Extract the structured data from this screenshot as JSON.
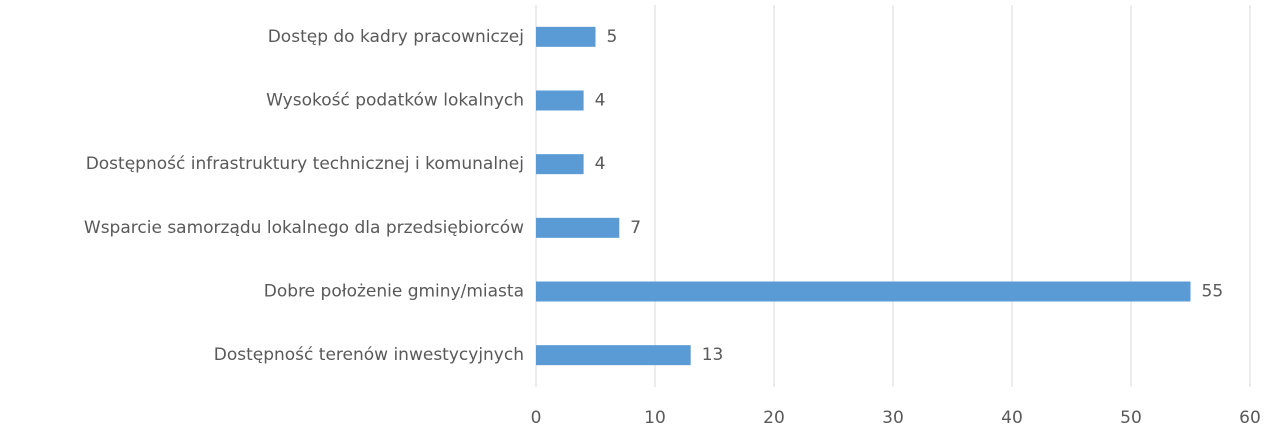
{
  "chart_data": {
    "type": "bar",
    "orientation": "horizontal",
    "categories": [
      "Dostęp do kadry pracowniczej",
      "Wysokość podatków lokalnych",
      "Dostępność infrastruktury technicznej i komunalnej",
      "Wsparcie samorządu lokalnego dla przedsiębiorców",
      "Dobre położenie gminy/miasta",
      "Dostępność terenów inwestycyjnych"
    ],
    "values": [
      5,
      4,
      4,
      7,
      55,
      13
    ],
    "color": "#5b9bd5",
    "xlim": [
      0,
      60
    ],
    "xticks": [
      0,
      10,
      20,
      30,
      40,
      50,
      60
    ],
    "grid": true
  }
}
